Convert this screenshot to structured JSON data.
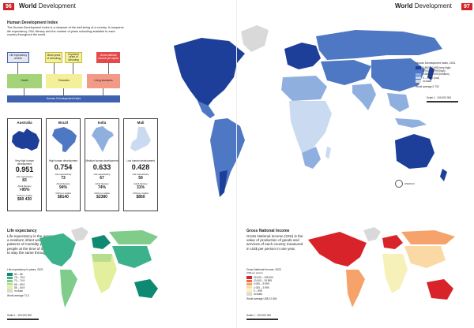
{
  "header": {
    "left_page": "96",
    "right_page": "97",
    "title_bold": "World",
    "title_rest": "Development"
  },
  "hdi_intro": {
    "title": "Human Development Index",
    "body": "The Human Development Index is a measure of the well-being of a country. It compares life expectancy, GNI, literacy and the number of years schooling available to each country throughout the world."
  },
  "flow": {
    "top": [
      "Life expectancy at birth",
      "Mean years of schooling",
      "Expected years of schooling",
      "Gross national income per capita"
    ],
    "middle": [
      "Health",
      "Education",
      "Living standards"
    ],
    "bottom": "Human Development Index"
  },
  "cards": [
    {
      "name": "Australia",
      "development": "Very high human development",
      "hdi": "0.951",
      "life_label": "Life expectancy",
      "life": "83",
      "lit_label": "Adult literacy",
      "lit": ">95%",
      "gni_label": "GNI per capita",
      "gni": "$60 430"
    },
    {
      "name": "Brazil",
      "development": "High human development",
      "hdi": "0.754",
      "life_label": "Life expectancy",
      "life": "73",
      "lit_label": "Adult literacy",
      "lit": "94%",
      "gni_label": "GNI per capita",
      "gni": "$8140"
    },
    {
      "name": "India",
      "development": "Medium human development",
      "hdi": "0.633",
      "life_label": "Life expectancy",
      "life": "67",
      "lit_label": "Adult literacy",
      "lit": "74%",
      "gni_label": "GNI per capita",
      "gni": "$2380"
    },
    {
      "name": "Mali",
      "development": "Low human development",
      "hdi": "0.428",
      "life_label": "Life expectancy",
      "life": "59",
      "lit_label": "Adult literacy",
      "lit": "31%",
      "gni_label": "GNI per capita",
      "gni": "$850"
    }
  ],
  "hdi_map": {
    "legend_title": "Human Development Index, 2021",
    "legend": [
      "0.800 – 0.999 (very high)",
      "0.700 – 0.799 (high)",
      "0.550 – 0.699 (medium)",
      "0 – 0.549 (low)",
      "no data"
    ],
    "colors": [
      "#1d3f9a",
      "#4f78c4",
      "#8fb0df",
      "#c9daf1",
      "#d9d9d9"
    ],
    "world_average": "World average 0.732",
    "scale": "Scale 1 : 100 000 000",
    "source": "UNESCO"
  },
  "life_map": {
    "title": "Life expectancy",
    "body": "Life expectancy is the average age a newborn infant would live to if patterns of mortality prevailing for all people at the time of its birth were to stay the same throughout its life.",
    "legend_title": "Life expectancy in years, 2021",
    "legend": [
      "80 – 86",
      "75 – 79.9",
      "70 – 74.9",
      "65 – 69.9",
      "55 – 64.9",
      "no data"
    ],
    "colors": [
      "#0f8a72",
      "#3bb28b",
      "#7fcc8b",
      "#b7de8e",
      "#e4ef9d",
      "#d9d9d9"
    ],
    "world_average": "World average 71.3",
    "scale": "Scale 1 : 100 000 000"
  },
  "gni_map": {
    "title": "Gross National Income",
    "body": "Gross National Income (GNI) is the value of production of goods and services of each country measured in US$ per person in one year.",
    "legend_title": "Gross National Income, 2022",
    "legend_subtitle": "US$ per person",
    "legend": [
      "20 000 – 105 000",
      "10 000 – 19 999",
      "4 000 – 9 999",
      "1 000 – 3 999",
      "0 – 999",
      "no data"
    ],
    "colors": [
      "#d8232a",
      "#ee6a3d",
      "#f6a36b",
      "#fbd9a4",
      "#f6f1b8",
      "#d9d9d9"
    ],
    "world_average": "World average US$ 12 804",
    "scale": "Scale 1 : 100 000 000"
  }
}
